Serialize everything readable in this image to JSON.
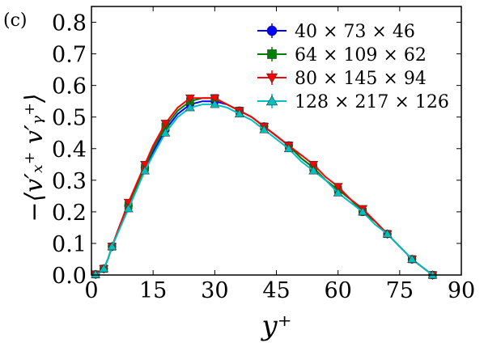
{
  "chart_data": {
    "type": "line",
    "panel_label": "(c)",
    "xlabel": "y⁺",
    "ylabel": "−⟨v′ₓ⁺ v′ᵧ⁺⟩",
    "xlim": [
      0,
      90
    ],
    "ylim": [
      0,
      0.85
    ],
    "xticks": [
      "0",
      "15",
      "30",
      "45",
      "60",
      "75",
      "90"
    ],
    "yticks": [
      "0.0",
      "0.1",
      "0.2",
      "0.3",
      "0.4",
      "0.5",
      "0.6",
      "0.7",
      "0.8"
    ],
    "legend_position": "top-right",
    "grid": false,
    "series": [
      {
        "name": "40 × 73 × 46",
        "color": "#0000ff",
        "marker": "circle",
        "x": [
          0,
          1,
          2,
          3,
          4,
          5,
          7,
          9,
          11,
          13,
          15,
          18,
          21,
          24,
          27,
          30,
          33,
          36,
          39,
          42,
          45,
          48,
          51,
          54,
          57,
          60,
          63,
          66,
          69,
          72,
          75,
          78,
          81,
          83
        ],
        "y": [
          0.0,
          0.002,
          0.008,
          0.02,
          0.05,
          0.09,
          0.16,
          0.22,
          0.28,
          0.34,
          0.39,
          0.46,
          0.51,
          0.54,
          0.55,
          0.55,
          0.54,
          0.52,
          0.5,
          0.47,
          0.44,
          0.41,
          0.37,
          0.34,
          0.3,
          0.27,
          0.24,
          0.2,
          0.17,
          0.13,
          0.09,
          0.05,
          0.02,
          0.0
        ]
      },
      {
        "name": "64 × 109 × 62",
        "color": "#008000",
        "marker": "square",
        "x": [
          0,
          1,
          2,
          3,
          4,
          5,
          7,
          9,
          11,
          13,
          15,
          18,
          21,
          24,
          27,
          30,
          33,
          36,
          39,
          42,
          45,
          48,
          51,
          54,
          57,
          60,
          63,
          66,
          69,
          72,
          75,
          78,
          81,
          83
        ],
        "y": [
          0.0,
          0.002,
          0.008,
          0.02,
          0.05,
          0.09,
          0.16,
          0.22,
          0.28,
          0.34,
          0.4,
          0.47,
          0.52,
          0.55,
          0.56,
          0.56,
          0.54,
          0.52,
          0.5,
          0.47,
          0.44,
          0.41,
          0.37,
          0.34,
          0.3,
          0.27,
          0.24,
          0.2,
          0.17,
          0.13,
          0.09,
          0.05,
          0.02,
          0.0
        ]
      },
      {
        "name": "80 × 145 × 94",
        "color": "#ff0000",
        "marker": "triangle-down",
        "x": [
          0,
          1,
          2,
          3,
          4,
          5,
          7,
          9,
          11,
          13,
          15,
          18,
          21,
          24,
          27,
          30,
          33,
          36,
          39,
          42,
          45,
          48,
          51,
          54,
          57,
          60,
          63,
          66,
          69,
          72,
          75,
          78,
          81,
          83
        ],
        "y": [
          0.0,
          0.002,
          0.008,
          0.02,
          0.05,
          0.09,
          0.16,
          0.23,
          0.29,
          0.35,
          0.41,
          0.48,
          0.53,
          0.56,
          0.56,
          0.56,
          0.54,
          0.52,
          0.5,
          0.47,
          0.44,
          0.41,
          0.38,
          0.35,
          0.31,
          0.28,
          0.24,
          0.21,
          0.17,
          0.13,
          0.09,
          0.05,
          0.02,
          0.0
        ]
      },
      {
        "name": "128 × 217 × 126",
        "color": "#00bfbf",
        "marker": "triangle-up",
        "x": [
          0,
          1,
          2,
          3,
          4,
          5,
          7,
          9,
          11,
          13,
          15,
          18,
          21,
          24,
          27,
          30,
          33,
          36,
          39,
          42,
          45,
          48,
          51,
          54,
          57,
          60,
          63,
          66,
          69,
          72,
          75,
          78,
          81,
          83
        ],
        "y": [
          0.0,
          0.002,
          0.007,
          0.02,
          0.05,
          0.09,
          0.15,
          0.21,
          0.27,
          0.33,
          0.38,
          0.45,
          0.5,
          0.53,
          0.54,
          0.54,
          0.53,
          0.51,
          0.49,
          0.46,
          0.43,
          0.4,
          0.36,
          0.33,
          0.3,
          0.26,
          0.23,
          0.2,
          0.16,
          0.13,
          0.09,
          0.05,
          0.02,
          0.0
        ]
      }
    ]
  }
}
